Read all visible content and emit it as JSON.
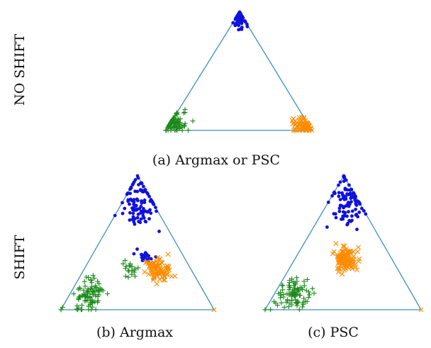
{
  "figure": {
    "row_labels": [
      "NO SHIFT",
      "SHIFT"
    ],
    "captions": {
      "a": "(a) Argmax or PSC",
      "b": "(b) Argmax",
      "c": "(c) PSC"
    }
  },
  "colors": {
    "triangle": "#3f8fbf",
    "class_circle": "#1010e0",
    "class_plus": "#1a8a1a",
    "class_x": "#ff8c00"
  },
  "chart_data": [
    {
      "panel": "a",
      "type": "scatter",
      "title": "(a) Argmax or PSC",
      "grid": false,
      "series": [
        {
          "marker": "circle",
          "color": "#1010e0",
          "cluster": {
            "a": 0.95,
            "b": 0.025,
            "c": 0.025,
            "spread": 0.03,
            "n": 80
          }
        },
        {
          "marker": "plus",
          "color": "#1a8a1a",
          "cluster": {
            "a": 0.06,
            "b": 0.9,
            "c": 0.04,
            "spread": 0.05,
            "n": 80
          }
        },
        {
          "marker": "x",
          "color": "#ff8c00",
          "cluster": {
            "a": 0.04,
            "b": 0.04,
            "c": 0.92,
            "spread": 0.04,
            "n": 80
          }
        }
      ]
    },
    {
      "panel": "b",
      "type": "scatter",
      "title": "(b) Argmax",
      "grid": false,
      "series": [
        {
          "marker": "circle",
          "color": "#1010e0",
          "cluster": {
            "a": 0.8,
            "b": 0.08,
            "c": 0.12,
            "spread": 0.09,
            "n": 100
          }
        },
        {
          "marker": "circle",
          "color": "#1010e0",
          "cluster": {
            "a": 0.4,
            "b": 0.25,
            "c": 0.35,
            "spread": 0.04,
            "n": 25
          }
        },
        {
          "marker": "plus",
          "color": "#1a8a1a",
          "cluster": {
            "a": 0.12,
            "b": 0.75,
            "c": 0.13,
            "spread": 0.06,
            "n": 90
          }
        },
        {
          "marker": "plus",
          "color": "#1a8a1a",
          "cluster": {
            "a": 0.3,
            "b": 0.4,
            "c": 0.3,
            "spread": 0.04,
            "n": 20
          }
        },
        {
          "marker": "x",
          "color": "#ff8c00",
          "cluster": {
            "a": 0.3,
            "b": 0.22,
            "c": 0.48,
            "spread": 0.05,
            "n": 90
          }
        }
      ]
    },
    {
      "panel": "c",
      "type": "scatter",
      "title": "(c) PSC",
      "grid": false,
      "series": [
        {
          "marker": "circle",
          "color": "#1010e0",
          "cluster": {
            "a": 0.8,
            "b": 0.08,
            "c": 0.12,
            "spread": 0.09,
            "n": 100
          }
        },
        {
          "marker": "plus",
          "color": "#1a8a1a",
          "cluster": {
            "a": 0.12,
            "b": 0.75,
            "c": 0.13,
            "spread": 0.06,
            "n": 90
          }
        },
        {
          "marker": "x",
          "color": "#ff8c00",
          "cluster": {
            "a": 0.37,
            "b": 0.3,
            "c": 0.33,
            "spread": 0.05,
            "n": 110
          }
        }
      ]
    }
  ]
}
